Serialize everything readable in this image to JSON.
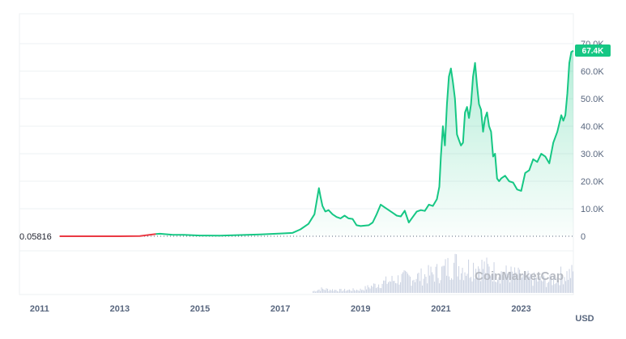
{
  "chart_data": {
    "type": "area",
    "unit": "USD",
    "start_label": "0.05816",
    "current_label": "67.4K",
    "watermark": "CoinMarketCap",
    "x_ticks": [
      "2011",
      "2013",
      "2015",
      "2017",
      "2019",
      "2021",
      "2023"
    ],
    "y_ticks": [
      "0",
      "10.0K",
      "20.0K",
      "30.0K",
      "40.0K",
      "50.0K",
      "60.0K",
      "70.0K"
    ],
    "y_tick_values": [
      0,
      10000,
      20000,
      30000,
      40000,
      50000,
      60000,
      70000
    ],
    "xlim": [
      2010.5,
      2024.3
    ],
    "ylim": [
      0,
      70000
    ],
    "grid": true,
    "colors": {
      "line": "#16c784",
      "early_line": "#ea3943",
      "current_badge": "#16c784",
      "volume": "#cfd6e4"
    },
    "series": [
      {
        "x": [
          2011.5,
          2012.0,
          2012.5,
          2013.0,
          2013.5,
          2013.9,
          2014.0,
          2014.3,
          2014.6,
          2015.0,
          2015.5,
          2016.0,
          2016.5,
          2017.0,
          2017.3,
          2017.5,
          2017.7,
          2017.85,
          2017.96,
          2018.0,
          2018.05,
          2018.12,
          2018.2,
          2018.3,
          2018.4,
          2018.5,
          2018.6,
          2018.7,
          2018.8,
          2018.9,
          2019.0,
          2019.2,
          2019.3,
          2019.4,
          2019.5,
          2019.6,
          2019.7,
          2019.8,
          2019.9,
          2020.0,
          2020.1,
          2020.2,
          2020.3,
          2020.4,
          2020.5,
          2020.6,
          2020.7,
          2020.8,
          2020.9,
          2020.96,
          2021.0,
          2021.05,
          2021.1,
          2021.15,
          2021.2,
          2021.25,
          2021.3,
          2021.35,
          2021.4,
          2021.45,
          2021.5,
          2021.55,
          2021.6,
          2021.65,
          2021.7,
          2021.75,
          2021.8,
          2021.85,
          2021.9,
          2021.95,
          2022.0,
          2022.05,
          2022.1,
          2022.15,
          2022.2,
          2022.25,
          2022.3,
          2022.35,
          2022.4,
          2022.45,
          2022.5,
          2022.6,
          2022.7,
          2022.8,
          2022.9,
          2023.0,
          2023.1,
          2023.2,
          2023.3,
          2023.4,
          2023.5,
          2023.6,
          2023.7,
          2023.8,
          2023.9,
          2024.0,
          2024.05,
          2024.1,
          2024.15,
          2024.2,
          2024.25,
          2024.3
        ],
        "values": [
          0.06,
          5,
          7,
          13,
          100,
          800,
          900,
          550,
          500,
          250,
          240,
          430,
          650,
          1000,
          1200,
          2500,
          4500,
          8000,
          17500,
          14500,
          11000,
          9000,
          9500,
          8000,
          7000,
          6500,
          7500,
          6500,
          6300,
          4000,
          3700,
          4000,
          5000,
          8000,
          11500,
          10500,
          9500,
          8500,
          7500,
          7200,
          9300,
          5000,
          7000,
          9000,
          9500,
          9200,
          11500,
          11000,
          13500,
          18000,
          29000,
          40000,
          33000,
          48000,
          58000,
          61000,
          56000,
          50000,
          37000,
          35000,
          33000,
          34000,
          45000,
          47000,
          43000,
          48000,
          58000,
          63000,
          55000,
          48000,
          46000,
          38000,
          43000,
          45000,
          40000,
          38000,
          29000,
          30000,
          21000,
          20000,
          21000,
          22000,
          20000,
          19500,
          17000,
          16500,
          23000,
          24000,
          28000,
          27000,
          30000,
          29000,
          26500,
          34000,
          38000,
          44000,
          42000,
          44000,
          52000,
          63000,
          67000,
          67400
        ]
      }
    ],
    "volume": {
      "x": [
        2017.8,
        2018.0,
        2018.5,
        2019.0,
        2019.5,
        2020.0,
        2020.5,
        2021.0,
        2021.3,
        2021.6,
        2021.9,
        2022.2,
        2022.5,
        2022.8,
        2023.1,
        2023.4,
        2023.7,
        2024.0,
        2024.3
      ],
      "values": [
        0.05,
        0.12,
        0.08,
        0.1,
        0.3,
        0.45,
        0.5,
        0.65,
        0.9,
        0.75,
        0.85,
        0.7,
        0.6,
        0.55,
        0.45,
        0.4,
        0.35,
        0.55,
        0.6
      ]
    }
  }
}
